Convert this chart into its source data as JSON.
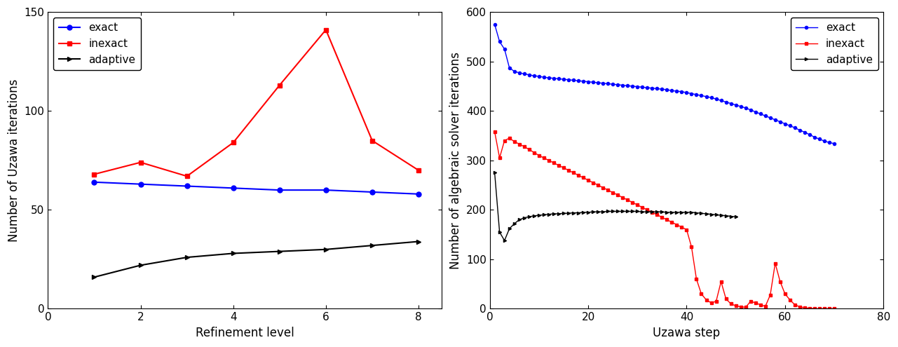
{
  "left": {
    "xlabel": "Refinement level",
    "ylabel": "Number of Uzawa iterations",
    "xlim": [
      0,
      8.5
    ],
    "ylim": [
      0,
      150
    ],
    "xticks": [
      0,
      2,
      4,
      6,
      8
    ],
    "yticks": [
      0,
      50,
      100,
      150
    ],
    "exact_x": [
      1,
      2,
      3,
      4,
      5,
      6,
      7,
      8
    ],
    "exact_y": [
      64,
      63,
      62,
      61,
      60,
      60,
      59,
      58
    ],
    "inexact_x": [
      1,
      2,
      3,
      4,
      5,
      6,
      7,
      8
    ],
    "inexact_y": [
      68,
      74,
      67,
      84,
      113,
      141,
      85,
      70
    ],
    "adaptive_x": [
      1,
      2,
      3,
      4,
      5,
      6,
      7,
      8
    ],
    "adaptive_y": [
      16,
      22,
      26,
      28,
      29,
      30,
      32,
      34
    ]
  },
  "right": {
    "xlabel": "Uzawa step",
    "ylabel": "Number of algebraic solver iterations",
    "xlim": [
      0,
      80
    ],
    "ylim": [
      0,
      600
    ],
    "xticks": [
      0,
      20,
      40,
      60,
      80
    ],
    "yticks": [
      0,
      100,
      200,
      300,
      400,
      500,
      600
    ],
    "exact_x": [
      1,
      2,
      3,
      4,
      5,
      6,
      7,
      8,
      9,
      10,
      11,
      12,
      13,
      14,
      15,
      16,
      17,
      18,
      19,
      20,
      21,
      22,
      23,
      24,
      25,
      26,
      27,
      28,
      29,
      30,
      31,
      32,
      33,
      34,
      35,
      36,
      37,
      38,
      39,
      40,
      41,
      42,
      43,
      44,
      45,
      46,
      47,
      48,
      49,
      50,
      51,
      52,
      53,
      54,
      55,
      56,
      57,
      58,
      59,
      60,
      61,
      62,
      63,
      64,
      65,
      66,
      67,
      68,
      69,
      70
    ],
    "exact_y": [
      575,
      540,
      525,
      487,
      480,
      477,
      475,
      473,
      471,
      470,
      468,
      467,
      466,
      465,
      464,
      463,
      462,
      461,
      460,
      459,
      458,
      457,
      456,
      455,
      454,
      453,
      452,
      451,
      450,
      449,
      448,
      447,
      446,
      445,
      444,
      443,
      441,
      440,
      439,
      437,
      435,
      433,
      431,
      429,
      427,
      424,
      421,
      418,
      415,
      412,
      409,
      406,
      402,
      398,
      394,
      390,
      386,
      382,
      378,
      374,
      370,
      366,
      361,
      357,
      352,
      347,
      343,
      339,
      336,
      334
    ],
    "inexact_x": [
      1,
      2,
      3,
      4,
      5,
      6,
      7,
      8,
      9,
      10,
      11,
      12,
      13,
      14,
      15,
      16,
      17,
      18,
      19,
      20,
      21,
      22,
      23,
      24,
      25,
      26,
      27,
      28,
      29,
      30,
      31,
      32,
      33,
      34,
      35,
      36,
      37,
      38,
      39,
      40,
      41,
      42,
      43,
      44,
      45,
      46,
      47,
      48,
      49,
      50,
      51,
      52,
      53,
      54,
      55,
      56,
      57,
      58,
      59,
      60,
      61,
      62,
      63,
      64,
      65,
      66,
      67,
      68,
      69,
      70
    ],
    "inexact_y": [
      358,
      305,
      340,
      345,
      338,
      333,
      328,
      322,
      316,
      310,
      305,
      300,
      295,
      290,
      285,
      280,
      275,
      270,
      265,
      260,
      255,
      250,
      245,
      240,
      235,
      230,
      225,
      220,
      215,
      210,
      205,
      200,
      195,
      190,
      185,
      180,
      175,
      170,
      165,
      160,
      125,
      60,
      30,
      18,
      12,
      15,
      55,
      20,
      10,
      6,
      4,
      3,
      15,
      12,
      8,
      5,
      28,
      92,
      55,
      30,
      18,
      8,
      4,
      2,
      1,
      0,
      0,
      0,
      0,
      0
    ],
    "adaptive_x": [
      1,
      2,
      3,
      4,
      5,
      6,
      7,
      8,
      9,
      10,
      11,
      12,
      13,
      14,
      15,
      16,
      17,
      18,
      19,
      20,
      21,
      22,
      23,
      24,
      25,
      26,
      27,
      28,
      29,
      30,
      31,
      32,
      33,
      34,
      35,
      36,
      37,
      38,
      39,
      40,
      41,
      42,
      43,
      44,
      45,
      46,
      47,
      48,
      49,
      50
    ],
    "adaptive_y": [
      275,
      155,
      138,
      162,
      172,
      180,
      184,
      186,
      188,
      189,
      190,
      191,
      192,
      192,
      193,
      193,
      194,
      194,
      195,
      195,
      196,
      196,
      196,
      197,
      197,
      197,
      197,
      197,
      197,
      197,
      196,
      196,
      196,
      196,
      196,
      195,
      195,
      195,
      195,
      195,
      195,
      194,
      193,
      192,
      191,
      190,
      189,
      188,
      187,
      186
    ]
  },
  "exact_color": "#0000ff",
  "inexact_color": "#ff0000",
  "adaptive_color": "#000000"
}
